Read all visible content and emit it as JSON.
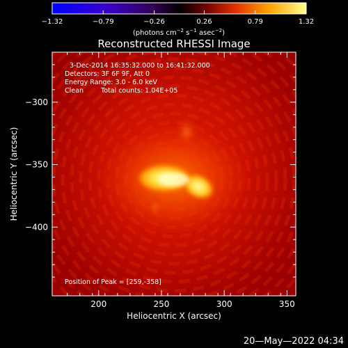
{
  "colorbar": {
    "ticks": [
      {
        "value": -1.32,
        "label": "−1.32"
      },
      {
        "value": -0.79,
        "label": "−0.79"
      },
      {
        "value": -0.26,
        "label": "−0.26"
      },
      {
        "value": 0.26,
        "label": "0.26"
      },
      {
        "value": 0.79,
        "label": "0.79"
      },
      {
        "value": 1.32,
        "label": "1.32"
      }
    ],
    "range": [
      -1.32,
      1.32
    ],
    "units_main": "(photons cm",
    "units_sup1": "−2",
    "units_mid1": " s",
    "units_sup2": "−1",
    "units_mid2": " asec",
    "units_sup3": "−2",
    "units_end": ")"
  },
  "annotation": {
    "time_range": "3-Dec-2014 16:35:32.000 to 16:41:32.000",
    "detectors": "Detectors: 3F 6F 9F, Att 0",
    "energy": "Energy Range: 3.0 - 6.0 keV",
    "clean": "Clean",
    "total_counts": "Total counts: 1.04E+05",
    "peak": "Position of Peak = [259,-358]"
  },
  "timestamp": "20—May—2022 04:34",
  "chart_data": {
    "type": "heatmap",
    "title": "Reconstructed RHESSI Image",
    "xlabel": "Heliocentric X (arcsec)",
    "ylabel": "Heliocentric Y (arcsec)",
    "xlim": [
      163,
      357
    ],
    "ylim": [
      -455,
      -260
    ],
    "xticks": [
      {
        "value": 200,
        "label": "200"
      },
      {
        "value": 250,
        "label": "250"
      },
      {
        "value": 300,
        "label": "300"
      },
      {
        "value": 350,
        "label": "350"
      }
    ],
    "yticks": [
      {
        "value": -300,
        "label": "−300"
      },
      {
        "value": -350,
        "label": "−350"
      },
      {
        "value": -400,
        "label": "−400"
      }
    ],
    "peak": {
      "x": 259,
      "y": -358
    },
    "colormap": "red-temperature",
    "colors": {
      "low": "#0000ff",
      "mid": "#000000",
      "high": "#ffff80"
    }
  }
}
